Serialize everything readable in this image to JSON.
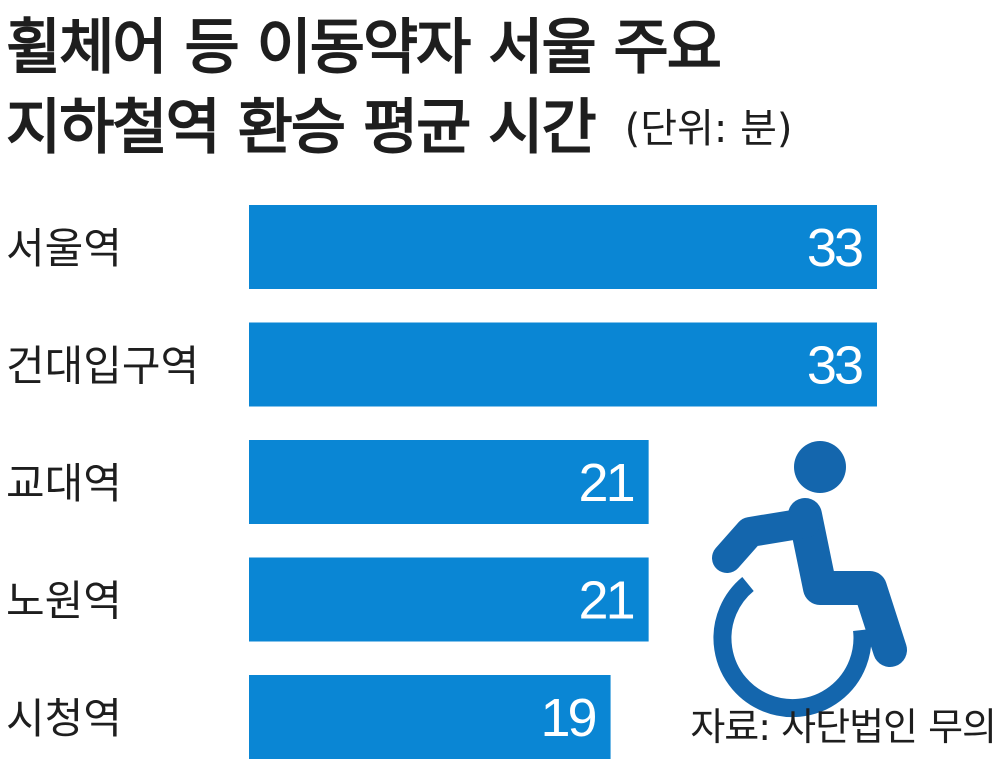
{
  "title_line1": "휠체어 등 이동약자 서울 주요",
  "title_line2": "지하철역 환승 평균 시간",
  "unit": "(단위: 분)",
  "source": "자료: 사단법인 무의",
  "colors": {
    "bar": "#0a86d4",
    "icon": "#1466ad",
    "value_text": "#ffffff",
    "label_text": "#1e1e1e"
  },
  "icon": "wheelchair-icon",
  "chart_data": {
    "type": "bar",
    "orientation": "horizontal",
    "title": "휠체어 등 이동약자 서울 주요 지하철역 환승 평균 시간",
    "unit": "분",
    "categories": [
      "서울역",
      "건대입구역",
      "교대역",
      "노원역",
      "시청역"
    ],
    "values": [
      33,
      33,
      21,
      21,
      19
    ],
    "data_labels": [
      "33",
      "33",
      "21",
      "21",
      "19"
    ],
    "grid": false,
    "legend": "none"
  }
}
